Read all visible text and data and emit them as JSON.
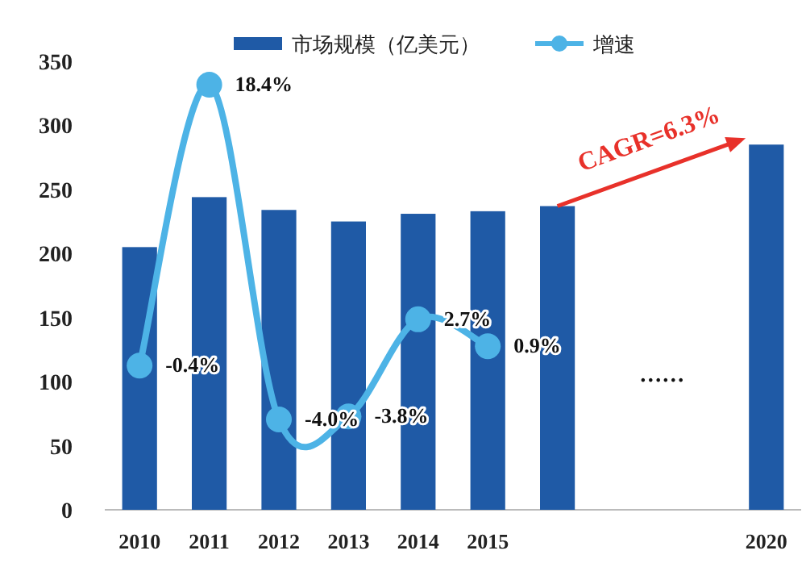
{
  "chart_data": {
    "type": "bar",
    "categories": [
      "2010",
      "2011",
      "2012",
      "2013",
      "2014",
      "2015",
      null,
      null,
      null,
      "2020"
    ],
    "ylim": [
      0,
      350
    ],
    "yticks": [
      0,
      50,
      100,
      150,
      200,
      250,
      300,
      350
    ],
    "legend": "top",
    "marker": "circle",
    "series": [
      {
        "name": "市场规模（亿美元）",
        "color": "#1f5aa6",
        "values": [
          205,
          244,
          234,
          225,
          231,
          233,
          237,
          null,
          null,
          285
        ]
      },
      {
        "name": "增速",
        "type": "line",
        "axis": "y2",
        "color": "#4db3e6",
        "values": [
          -0.4,
          18.4,
          -4.0,
          -3.8,
          2.7,
          0.9,
          null,
          null,
          null,
          null
        ],
        "value_labels": [
          "-0.4%",
          "18.4%",
          "-4.0%",
          "-3.8%",
          "2.7%",
          "0.9%",
          null,
          null,
          null,
          null
        ]
      }
    ],
    "annotations": [
      {
        "text": "CAGR=6.3%",
        "x": "2020",
        "y": 285
      },
      "……"
    ]
  }
}
